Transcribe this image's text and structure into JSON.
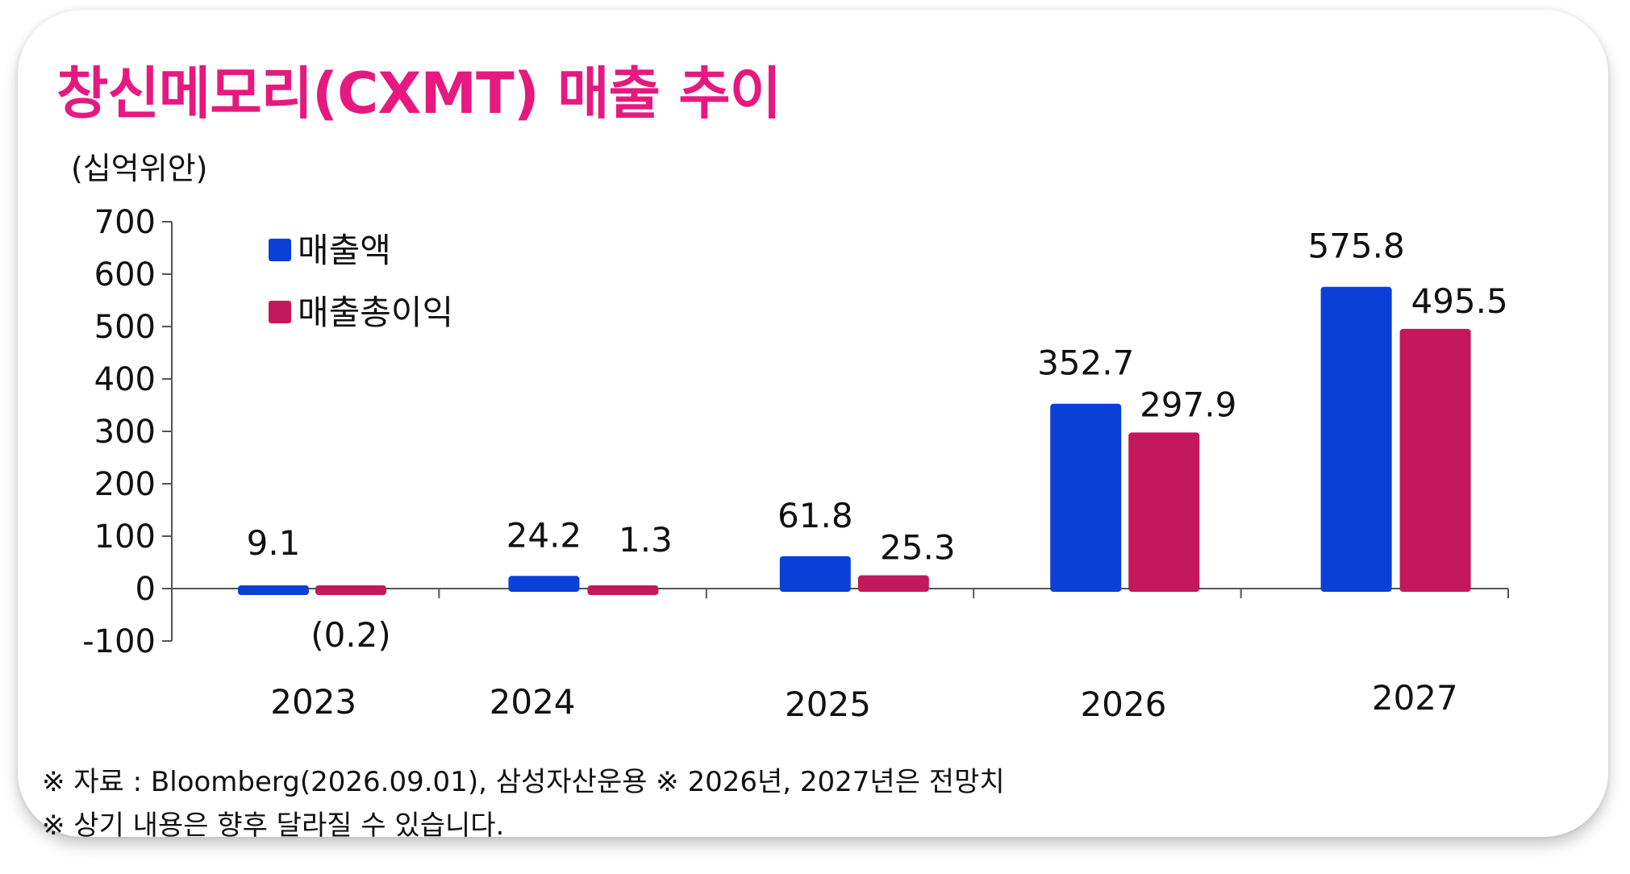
{
  "title": "창신메모리(CXMT) 매출 추이",
  "unit_label": "(십억위안)",
  "notes": [
    "※ 자료 : Bloomberg(2026.09.01), 삼성자산운용 ※ 2026년, 2027년은 전망치",
    "※ 상기 내용은 향후 달라질 수 있습니다."
  ],
  "colors": {
    "title": "#e5197f",
    "revenue": "#0a3fd8",
    "gross_profit": "#c4185c",
    "negative_label": "#e0201b"
  },
  "chart_data": {
    "type": "bar",
    "title": "창신메모리(CXMT) 매출 추이",
    "ylabel": "(십억위안)",
    "xlabel": "",
    "categories": [
      "2023",
      "2024",
      "2025",
      "2026",
      "2027"
    ],
    "ylim": [
      -100,
      700
    ],
    "yticks": [
      -100,
      0,
      100,
      200,
      300,
      400,
      500,
      600,
      700
    ],
    "legend_position": "top-left",
    "grid": false,
    "series": [
      {
        "name": "매출액",
        "color": "#0a3fd8",
        "values": [
          9.1,
          24.2,
          61.8,
          352.7,
          575.8
        ],
        "labels": [
          "9.1",
          "24.2",
          "61.8",
          "352.7",
          "575.8"
        ]
      },
      {
        "name": "매출총이익",
        "color": "#c4185c",
        "values": [
          -0.2,
          1.3,
          25.3,
          297.9,
          495.5
        ],
        "labels": [
          "(0.2)",
          "1.3",
          "25.3",
          "297.9",
          "495.5"
        ]
      }
    ]
  }
}
